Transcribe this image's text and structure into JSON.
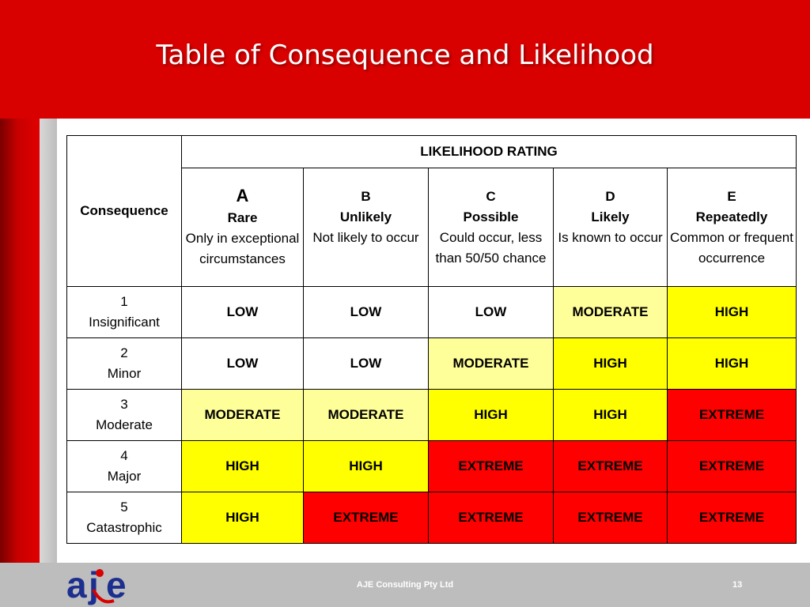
{
  "slide": {
    "title": "Table of Consequence and Likelihood",
    "footer": "AJE Consulting Pty Ltd",
    "page_number": "13",
    "logo_text": "aje",
    "colors": {
      "header": "#d90000",
      "footer": "#bdbdbd",
      "low": "#ffffff",
      "moderate": "#ffff99",
      "high": "#ffff00",
      "extreme": "#ff0000"
    }
  },
  "table": {
    "consequence_header": "Consequence",
    "likelihood_header": "LIKELIHOOD RATING",
    "columns": [
      {
        "letter": "A",
        "name": "Rare",
        "desc": "Only in exceptional circumstances"
      },
      {
        "letter": "B",
        "name": "Unlikely",
        "desc": "Not likely to occur"
      },
      {
        "letter": "C",
        "name": "Possible",
        "desc": "Could occur, less than 50/50 chance"
      },
      {
        "letter": "D",
        "name": "Likely",
        "desc": "Is known to occur"
      },
      {
        "letter": "E",
        "name": "Repeatedly",
        "desc": "Common or frequent occurrence"
      }
    ],
    "rows": [
      {
        "num": "1",
        "name": "Insignificant",
        "cells": [
          "LOW",
          "LOW",
          "LOW",
          "MODERATE",
          "HIGH"
        ]
      },
      {
        "num": "2",
        "name": "Minor",
        "cells": [
          "LOW",
          "LOW",
          "MODERATE",
          "HIGH",
          "HIGH"
        ]
      },
      {
        "num": "3",
        "name": "Moderate",
        "cells": [
          "MODERATE",
          "MODERATE",
          "HIGH",
          "HIGH",
          "EXTREME"
        ]
      },
      {
        "num": "4",
        "name": "Major",
        "cells": [
          "HIGH",
          "HIGH",
          "EXTREME",
          "EXTREME",
          "EXTREME"
        ]
      },
      {
        "num": "5",
        "name": "Catastrophic",
        "cells": [
          "HIGH",
          "EXTREME",
          "EXTREME",
          "EXTREME",
          "EXTREME"
        ]
      }
    ]
  }
}
